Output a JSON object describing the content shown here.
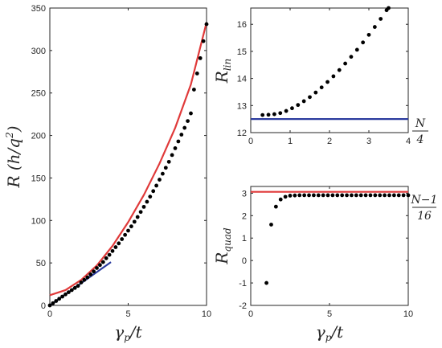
{
  "chart_data": [
    {
      "type": "scatter",
      "xlabel": {
        "main": "γ",
        "sub": "p",
        "rest": "/t"
      },
      "ylabel": {
        "main": "R",
        "rest": " (h/q",
        "sup": "2",
        "close": ")"
      },
      "xlim": [
        0,
        10
      ],
      "ylim": [
        0,
        350
      ],
      "xticks": [
        "0",
        "5",
        "10"
      ],
      "yticks": [
        "0",
        "50",
        "100",
        "150",
        "200",
        "250",
        "300",
        "350"
      ],
      "series": [
        {
          "kind": "line",
          "color": "#e03a3a",
          "x": [
            0,
            1,
            2,
            3,
            4,
            5,
            6,
            7,
            8,
            9,
            10
          ],
          "y": [
            12,
            18,
            30,
            47,
            70,
            98,
            130,
            167,
            209,
            260,
            333
          ]
        },
        {
          "kind": "line",
          "color": "#2b3b9e",
          "x": [
            0,
            3.9
          ],
          "y": [
            0,
            51
          ]
        },
        {
          "kind": "points",
          "color": "#000000",
          "x": [
            0,
            0.2,
            0.4,
            0.6,
            0.8,
            1,
            1.2,
            1.4,
            1.6,
            1.8,
            2,
            2.2,
            2.4,
            2.6,
            2.8,
            3,
            3.2,
            3.4,
            3.6,
            3.8,
            4,
            4.2,
            4.4,
            4.6,
            4.8,
            5,
            5.2,
            5.4,
            5.6,
            5.8,
            6,
            6.2,
            6.4,
            6.6,
            6.8,
            7,
            7.2,
            7.4,
            7.6,
            7.8,
            8,
            8.2,
            8.4,
            8.6,
            8.8,
            9,
            9.2,
            9.4,
            9.6,
            9.8,
            10
          ],
          "y": [
            0,
            2.6,
            5.2,
            7.8,
            10.4,
            13,
            15.5,
            18,
            20.5,
            23,
            27,
            30,
            33,
            36.5,
            40,
            44,
            47.5,
            51,
            55.5,
            59.5,
            64,
            68.5,
            73,
            78,
            83,
            88,
            93,
            98.5,
            104,
            110,
            116,
            122,
            128,
            134.5,
            141,
            148,
            155,
            162,
            169,
            177,
            185,
            193,
            201,
            209,
            217,
            226,
            254,
            273,
            291,
            311,
            331
          ]
        }
      ]
    },
    {
      "type": "scatter",
      "xlabel": {
        "main": "",
        "sub": "",
        "rest": ""
      },
      "ylabel": {
        "main": "R",
        "sub": "lin"
      },
      "xlim": [
        0,
        4
      ],
      "ylim": [
        12,
        16.6
      ],
      "xticks": [
        "0",
        "1",
        "2",
        "3",
        "4"
      ],
      "yticks": [
        "12",
        "13",
        "14",
        "15",
        "16"
      ],
      "annotation": {
        "numerator": "N",
        "denominator": "4"
      },
      "series": [
        {
          "kind": "hline",
          "color": "#2b3b9e",
          "y": 12.5
        },
        {
          "kind": "points",
          "color": "#000000",
          "x": [
            0.3,
            0.45,
            0.6,
            0.75,
            0.9,
            1.05,
            1.2,
            1.35,
            1.5,
            1.65,
            1.8,
            1.95,
            2.1,
            2.25,
            2.4,
            2.55,
            2.7,
            2.85,
            3.0,
            3.15,
            3.3,
            3.45,
            3.5
          ],
          "y": [
            12.65,
            12.66,
            12.68,
            12.72,
            12.8,
            12.9,
            13.02,
            13.16,
            13.31,
            13.48,
            13.67,
            13.87,
            14.08,
            14.31,
            14.55,
            14.8,
            15.06,
            15.33,
            15.61,
            15.9,
            16.2,
            16.52,
            16.6
          ]
        }
      ]
    },
    {
      "type": "scatter",
      "xlabel": {
        "main": "γ",
        "sub": "p",
        "rest": "/t"
      },
      "ylabel": {
        "main": "R",
        "sub": "quad"
      },
      "xlim": [
        0,
        10
      ],
      "ylim": [
        -2,
        3.3
      ],
      "xticks": [
        "0",
        "5",
        "10"
      ],
      "yticks": [
        "-2",
        "-1",
        "0",
        "1",
        "2",
        "3"
      ],
      "annotation": {
        "numerator": "N−1",
        "denominator": "16"
      },
      "series": [
        {
          "kind": "hline",
          "color": "#e03a3a",
          "y": 3.06
        },
        {
          "kind": "points",
          "color": "#000000",
          "x": [
            1,
            1.3,
            1.6,
            1.9,
            2.2,
            2.5,
            2.8,
            3.1,
            3.4,
            3.7,
            4.0,
            4.3,
            4.6,
            4.9,
            5.2,
            5.5,
            5.8,
            6.1,
            6.4,
            6.7,
            7.0,
            7.3,
            7.6,
            7.9,
            8.2,
            8.5,
            8.8,
            9.1,
            9.4,
            9.7,
            10
          ],
          "y": [
            -1,
            1.6,
            2.4,
            2.72,
            2.84,
            2.89,
            2.9,
            2.91,
            2.91,
            2.91,
            2.91,
            2.91,
            2.91,
            2.91,
            2.91,
            2.91,
            2.91,
            2.91,
            2.91,
            2.91,
            2.91,
            2.91,
            2.91,
            2.91,
            2.91,
            2.91,
            2.91,
            2.91,
            2.91,
            2.91,
            2.91
          ]
        }
      ]
    }
  ]
}
